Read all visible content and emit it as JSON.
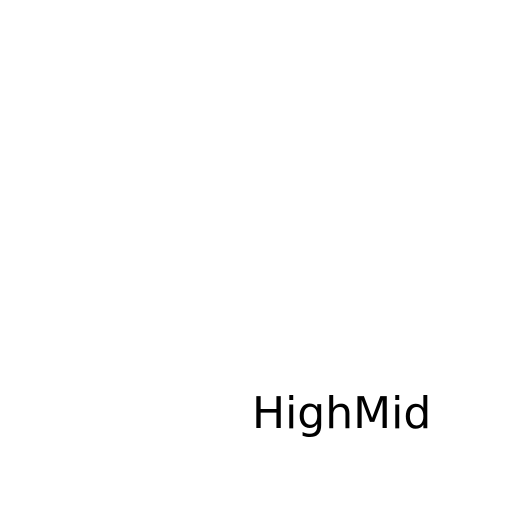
{
  "label": "HighMid"
}
